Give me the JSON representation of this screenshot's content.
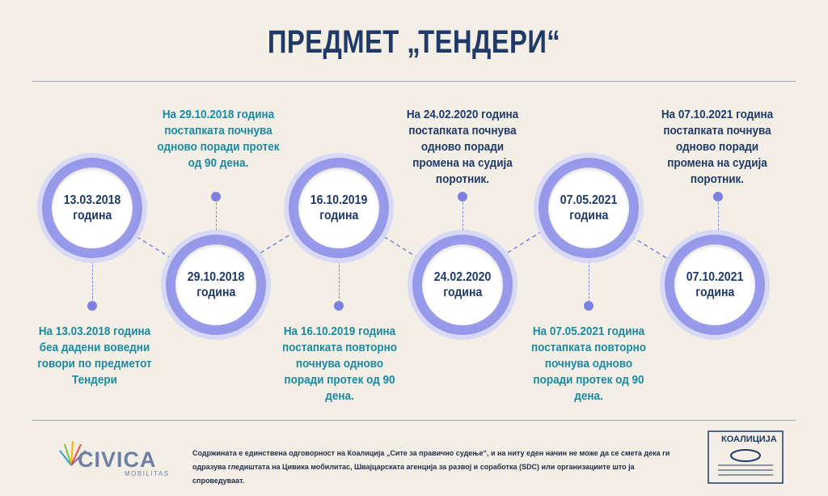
{
  "title": "ПРЕДМЕТ „ТЕНДЕРИ“",
  "events": [
    {
      "date": "13.03.2018",
      "word": "година",
      "text": "На 13.03.2018 година беа дадени воведни говори по предметот Тендери"
    },
    {
      "date": "29.10.2018",
      "word": "година",
      "text": "На 29.10.2018 година постапката почнува одново поради протек од 90 дена."
    },
    {
      "date": "16.10.2019",
      "word": "година",
      "text": "На 16.10.2019 година постапката повторно почнува одново поради протек од 90 дена."
    },
    {
      "date": "24.02.2020",
      "word": "година",
      "text": "На 24.02.2020 година постапката почнува одново поради промена на судија поротник."
    },
    {
      "date": "07.05.2021",
      "word": "година",
      "text": "На 07.05.2021 година постапката повторно почнува одново поради протек од 90 дена."
    },
    {
      "date": "07.10.2021",
      "word": "година",
      "text": "На 07.10.2021 година постапката почнува одново поради промена на судија поротник."
    }
  ],
  "footer": {
    "disclaimer": "Содржината е единствена одговорност на Коалиција „Сите за правично судење“, и на ниту еден начин не може да се смета  дека ги одразува гледиштата на Цивика мобилитас, Швајцарската агенција за развој и соработка (SDC) или организациите што ја спроведуваат.",
    "civica_logo_word": "CIVICA",
    "civica_logo_sub": "MOBILITAS",
    "coalition_logo_word": "КОАЛИЦИЈА"
  },
  "colors": {
    "title": "#1f3a68",
    "teal": "#1b8aa0",
    "node": "#8d8fe6",
    "background": "#f4efe6"
  }
}
